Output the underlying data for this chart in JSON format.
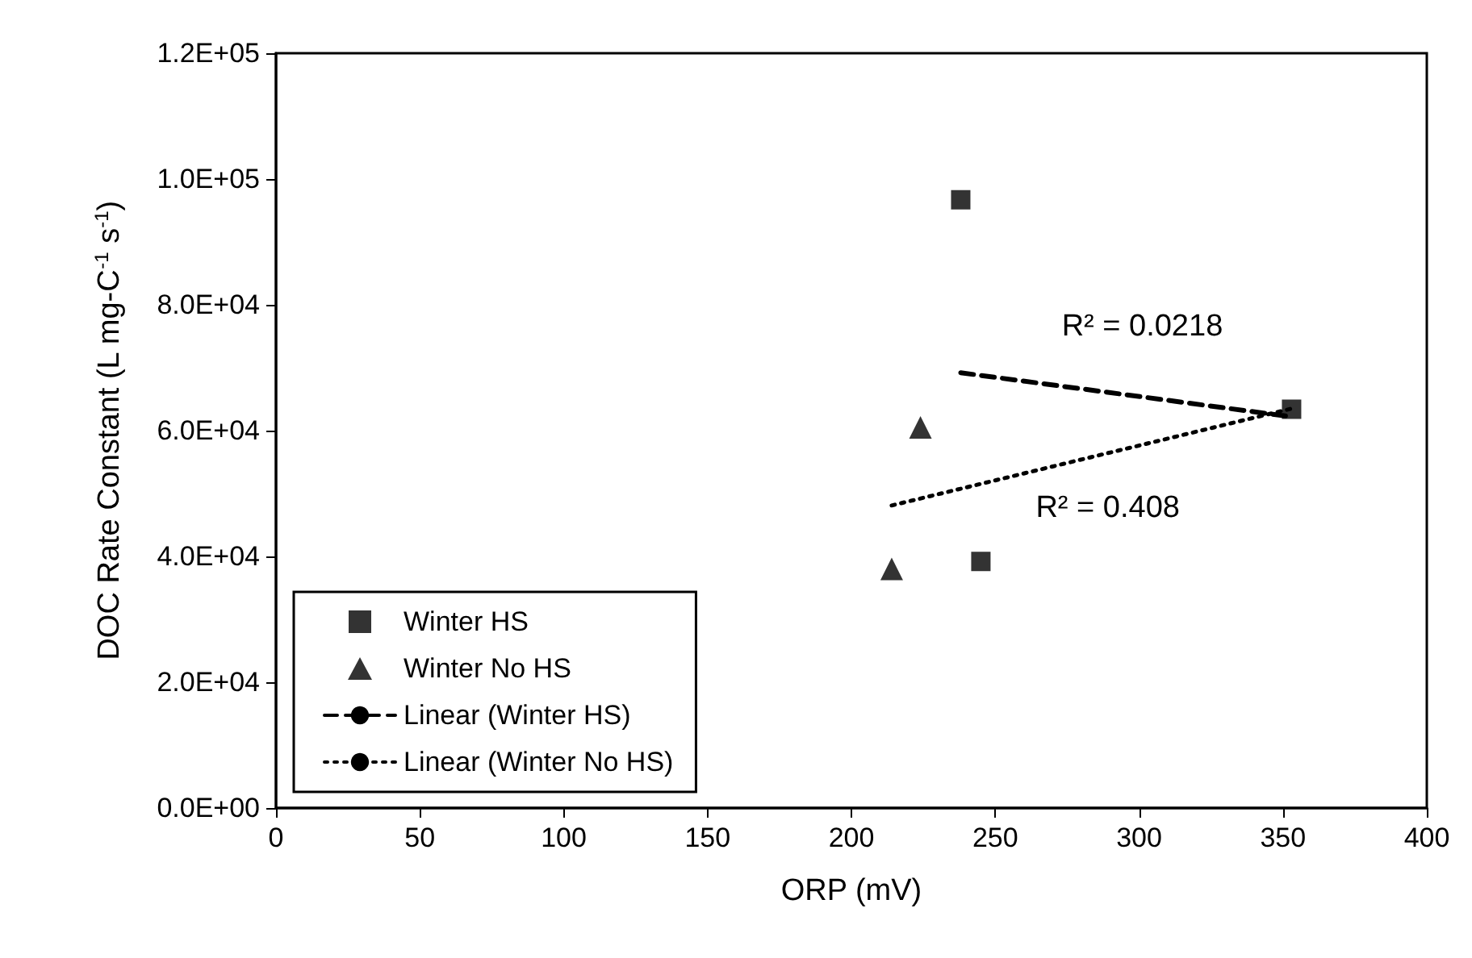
{
  "chart_data": {
    "type": "scatter",
    "xlabel": "ORP (mV)",
    "ylabel": "DOC Rate Constant (L mg-C$^{-1}$ s$^{-1}$)",
    "xlim": [
      0,
      400
    ],
    "xticks": [
      0,
      50,
      100,
      150,
      200,
      250,
      300,
      350,
      400
    ],
    "ylim": [
      0,
      120000
    ],
    "yticks": [
      {
        "value": 0,
        "label": "0.0E+00"
      },
      {
        "value": 20000,
        "label": "2.0E+04"
      },
      {
        "value": 40000,
        "label": "4.0E+04"
      },
      {
        "value": 60000,
        "label": "6.0E+04"
      },
      {
        "value": 80000,
        "label": "8.0E+04"
      },
      {
        "value": 100000,
        "label": "1.0E+05"
      },
      {
        "value": 120000,
        "label": "1.2E+05"
      }
    ],
    "series": [
      {
        "name": "Winter HS",
        "type": "scatter",
        "marker": "square",
        "color": "#000000",
        "x": [
          238,
          245,
          353
        ],
        "values": [
          96700,
          39200,
          63400
        ]
      },
      {
        "name": "Winter No HS",
        "type": "scatter",
        "marker": "triangle",
        "color": "#000000",
        "x": [
          214,
          224
        ],
        "values": [
          38000,
          60500
        ]
      },
      {
        "name": "Linear (Winter HS)",
        "type": "line",
        "marker": "none",
        "line_style": "dashed",
        "color": "#000000",
        "x": [
          238,
          353
        ],
        "values": [
          69200,
          62200
        ]
      },
      {
        "name": "Linear (Winter No HS)",
        "type": "line",
        "marker": "none",
        "line_style": "dotted",
        "color": "#000000",
        "x": [
          214,
          353
        ],
        "values": [
          48100,
          63500
        ]
      }
    ],
    "annotations": [
      "R² = 0.0218",
      "R² = 0.408"
    ],
    "legend": "bottom left",
    "grid": false
  }
}
